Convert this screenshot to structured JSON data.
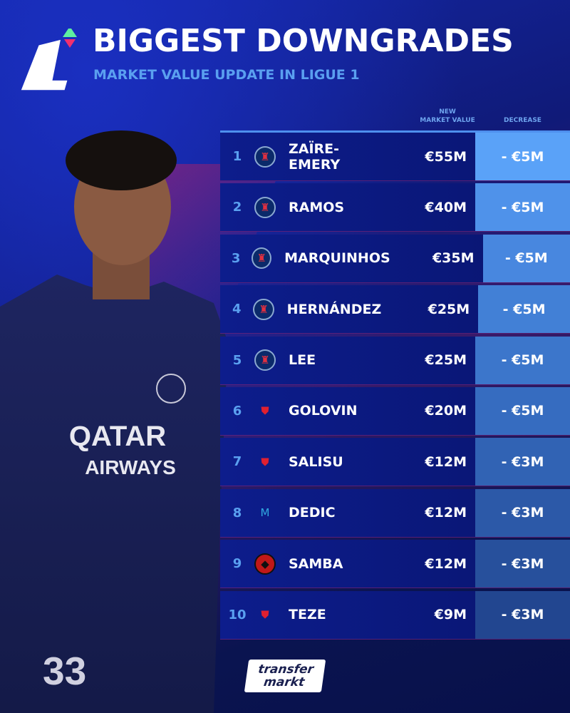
{
  "header": {
    "title": "BIGGEST DOWNGRADES",
    "subtitle": "MARKET VALUE UPDATE IN LIGUE 1",
    "logo": "Ligue 1 logo"
  },
  "columns": {
    "new_value": "NEW\nMARKET VALUE",
    "new_value_1": "NEW",
    "new_value_2": "MARKET VALUE",
    "decrease": "DECREASE"
  },
  "rows": [
    {
      "rank": "1",
      "club": "PSG",
      "name": "ZAÏRE-EMERY",
      "value": "€55M",
      "decrease": "- €5M"
    },
    {
      "rank": "2",
      "club": "PSG",
      "name": "RAMOS",
      "value": "€40M",
      "decrease": "- €5M"
    },
    {
      "rank": "3",
      "club": "PSG",
      "name": "MARQUINHOS",
      "value": "€35M",
      "decrease": "- €5M"
    },
    {
      "rank": "4",
      "club": "PSG",
      "name": "HERNÁNDEZ",
      "value": "€25M",
      "decrease": "- €5M"
    },
    {
      "rank": "5",
      "club": "PSG",
      "name": "LEE",
      "value": "€25M",
      "decrease": "- €5M"
    },
    {
      "rank": "6",
      "club": "Monaco",
      "name": "GOLOVIN",
      "value": "€20M",
      "decrease": "- €5M"
    },
    {
      "rank": "7",
      "club": "Monaco",
      "name": "SALISU",
      "value": "€12M",
      "decrease": "- €3M"
    },
    {
      "rank": "8",
      "club": "Marseille",
      "name": "DEDIC",
      "value": "€12M",
      "decrease": "- €3M"
    },
    {
      "rank": "9",
      "club": "Rennes",
      "name": "SAMBA",
      "value": "€12M",
      "decrease": "- €3M"
    },
    {
      "rank": "10",
      "club": "Monaco",
      "name": "TEZE",
      "value": "€9M",
      "decrease": "- €3M"
    }
  ],
  "footer": {
    "brand_1": "transfer",
    "brand_2": "markt"
  },
  "colors": {
    "accent": "#5aa0f0",
    "background": "#0b1560",
    "decrease_shades": [
      "#5aa2f8",
      "#4f92ea",
      "#4887df",
      "#4280d6",
      "#3c76cb",
      "#366cc0",
      "#3163b4",
      "#2c59a8",
      "#27509c",
      "#224690"
    ]
  }
}
